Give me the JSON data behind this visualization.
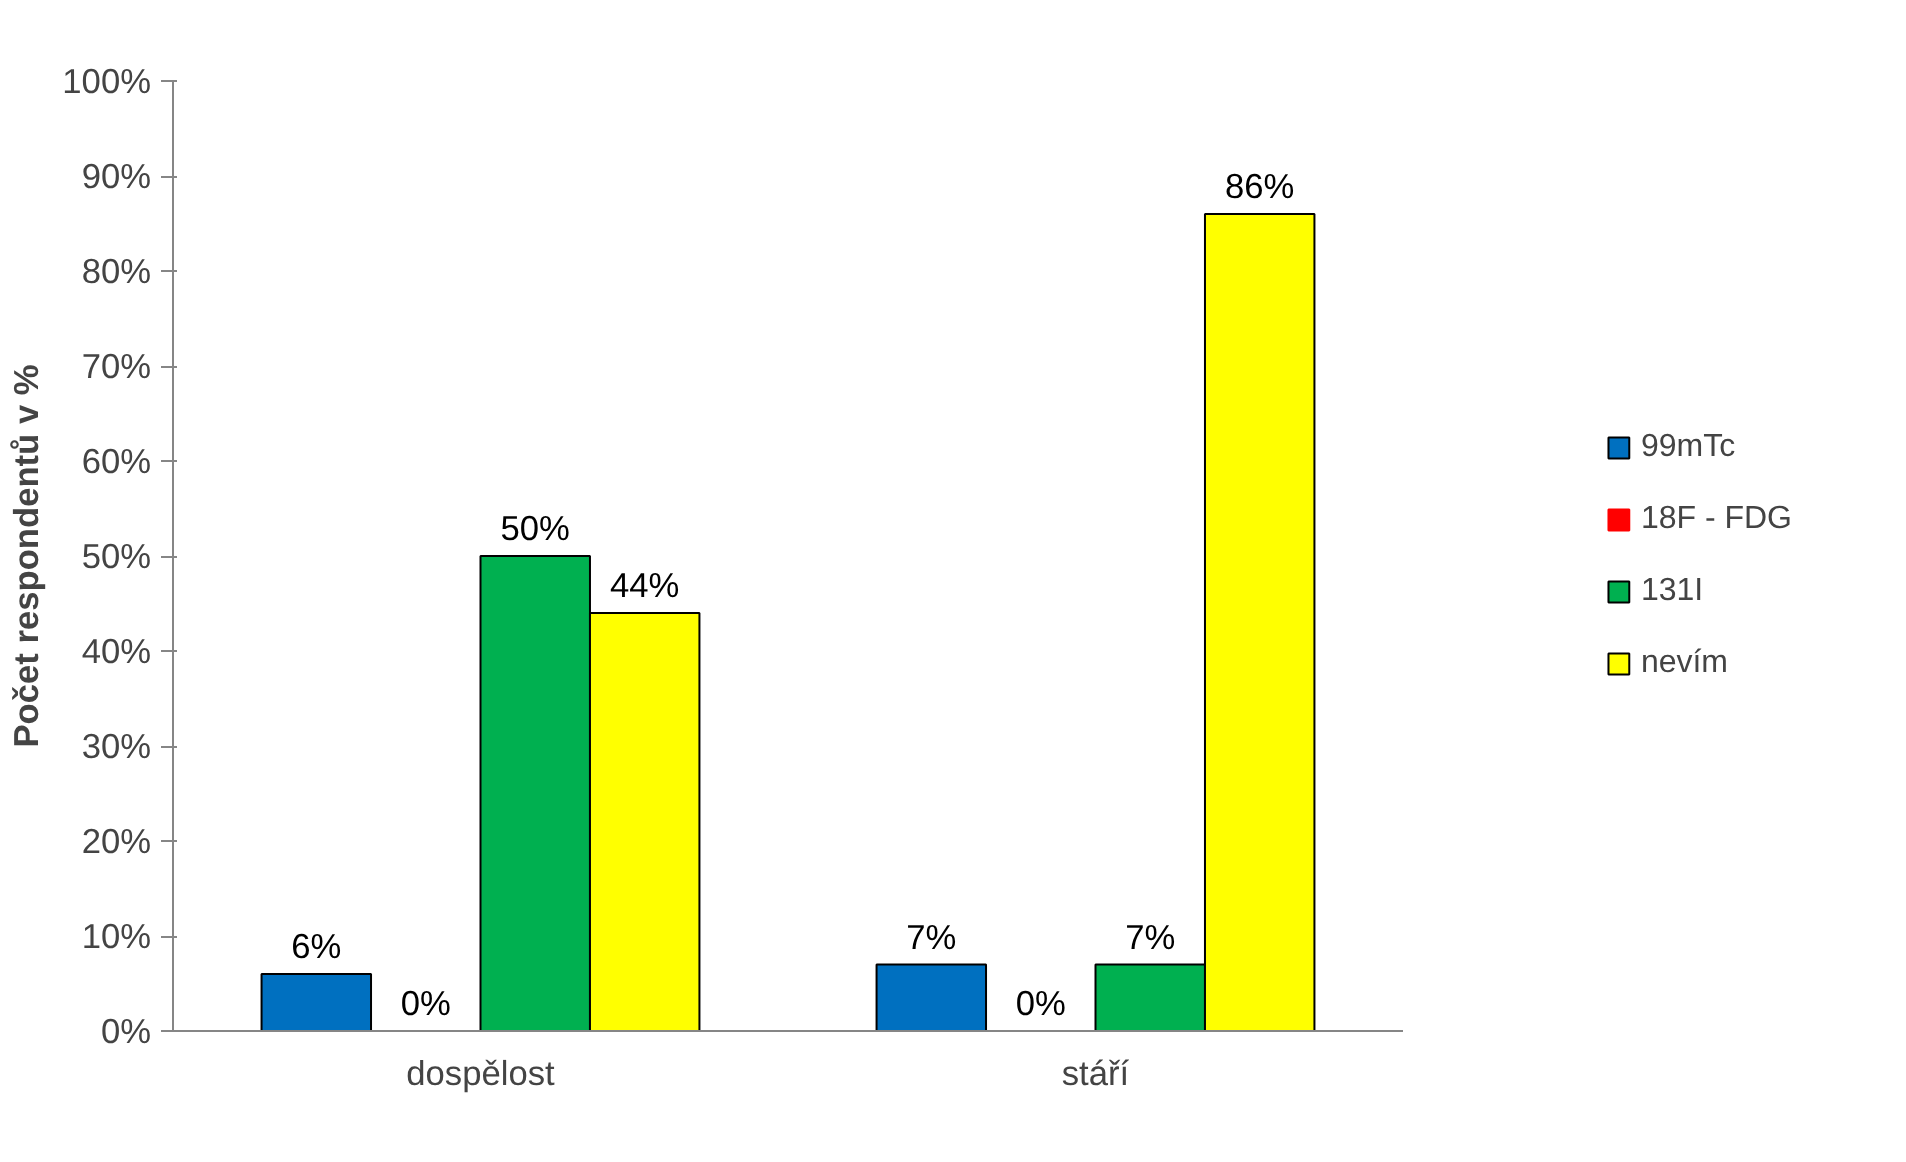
{
  "chart_data": {
    "type": "bar",
    "ylabel": "Počet respondentů v %",
    "categories": [
      "dospělost",
      "stáří"
    ],
    "series": [
      {
        "name": "99mTc",
        "color": "#0070c0",
        "values": [
          6,
          7
        ],
        "value_labels": [
          "6%",
          "7%"
        ]
      },
      {
        "name": "18F - FDG",
        "color": "#ff0000",
        "values": [
          0,
          0
        ],
        "value_labels": [
          "0%",
          "0%"
        ]
      },
      {
        "name": "131I",
        "color": "#00b050",
        "values": [
          50,
          7
        ],
        "value_labels": [
          "50%",
          "7%"
        ]
      },
      {
        "name": "nevím",
        "color": "#ffff00",
        "values": [
          44,
          86
        ],
        "value_labels": [
          "44%",
          "86%"
        ]
      }
    ],
    "ylim": [
      0,
      100
    ],
    "yticks": [
      {
        "value": 0,
        "label": "0%"
      },
      {
        "value": 10,
        "label": "10%"
      },
      {
        "value": 20,
        "label": "20%"
      },
      {
        "value": 30,
        "label": "30%"
      },
      {
        "value": 40,
        "label": "40%"
      },
      {
        "value": 50,
        "label": "50%"
      },
      {
        "value": 60,
        "label": "60%"
      },
      {
        "value": 70,
        "label": "70%"
      },
      {
        "value": 80,
        "label": "80%"
      },
      {
        "value": 90,
        "label": "90%"
      },
      {
        "value": 100,
        "label": "100%"
      }
    ],
    "grid": false,
    "legend": "right"
  }
}
